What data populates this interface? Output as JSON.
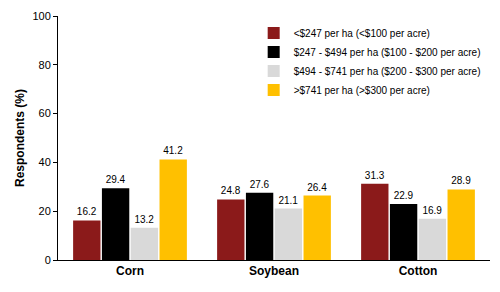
{
  "chart_data": {
    "type": "bar",
    "y_label": "Respondents (%)",
    "categories": [
      "Corn",
      "Soybean",
      "Cotton"
    ],
    "series": [
      {
        "name": "<$247 per ha (<$100 per acre)",
        "color": "#8b1a1a",
        "values": [
          16.2,
          24.8,
          31.3
        ]
      },
      {
        "name": "$247 - $494 per ha ($100 - $200 per acre)",
        "color": "#000000",
        "values": [
          29.4,
          27.6,
          22.9
        ]
      },
      {
        "name": "$494 - $741 per ha ($200 - $300 per acre)",
        "color": "#d9d9d9",
        "values": [
          13.2,
          21.1,
          16.9
        ]
      },
      {
        "name": ">$741 per ha (>$300 per acre)",
        "color": "#ffc000",
        "values": [
          41.2,
          26.4,
          28.9
        ]
      }
    ],
    "ylim": [
      0,
      100
    ],
    "yticks": [
      0,
      20,
      40,
      60,
      80,
      100
    ],
    "grid": false,
    "legend": "top right",
    "data_labels": true
  }
}
